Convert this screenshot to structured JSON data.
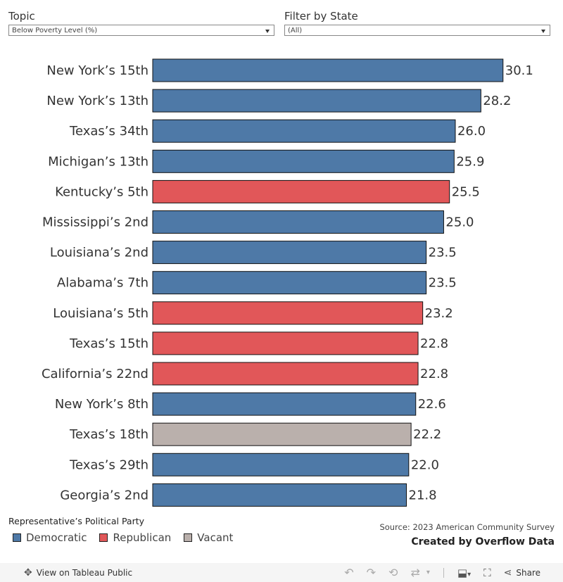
{
  "filters": {
    "topic": {
      "label": "Topic",
      "value": "Below Poverty Level (%)"
    },
    "state": {
      "label": "Filter by State",
      "value": "(All)"
    }
  },
  "colors": {
    "Democratic": "#4e79a7",
    "Republican": "#e15759",
    "Vacant": "#bab0ac",
    "bar_outline": "#111111"
  },
  "chart_data": {
    "type": "bar",
    "orientation": "horizontal",
    "title": "",
    "xlabel": "",
    "ylabel": "",
    "xlim": [
      0,
      33.5
    ],
    "grid": false,
    "legend_placement": "bottom-left",
    "categories": [
      "New York’s 15th",
      "New York’s 13th",
      "Texas’s 34th",
      "Michigan’s 13th",
      "Kentucky’s 5th",
      "Mississippi’s 2nd",
      "Louisiana’s 2nd",
      "Alabama’s 7th",
      "Louisiana’s 5th",
      "Texas’s 15th",
      "California’s 22nd",
      "New York’s 8th",
      "Texas’s 18th",
      "Texas’s 29th",
      "Georgia’s 2nd"
    ],
    "values": [
      30.1,
      28.2,
      26.0,
      25.9,
      25.5,
      25.0,
      23.5,
      23.5,
      23.2,
      22.8,
      22.8,
      22.6,
      22.2,
      22.0,
      21.8
    ],
    "value_labels": [
      "30.1",
      "28.2",
      "26.0",
      "25.9",
      "25.5",
      "25.0",
      "23.5",
      "23.5",
      "23.2",
      "22.8",
      "22.8",
      "22.6",
      "22.2",
      "22.0",
      "21.8"
    ],
    "party": [
      "Democratic",
      "Democratic",
      "Democratic",
      "Democratic",
      "Republican",
      "Democratic",
      "Democratic",
      "Democratic",
      "Republican",
      "Republican",
      "Republican",
      "Democratic",
      "Vacant",
      "Democratic",
      "Democratic"
    ]
  },
  "legend": {
    "title": "Representative’s Political Party",
    "items": [
      {
        "label": "Democratic",
        "color": "#4e79a7"
      },
      {
        "label": "Republican",
        "color": "#e15759"
      },
      {
        "label": "Vacant",
        "color": "#bab0ac"
      }
    ]
  },
  "footer": {
    "source": "Source: 2023 American Community Survey",
    "credit": "Created by Overflow Data"
  },
  "toolbar": {
    "view_label": "View on Tableau Public",
    "share_label": "Share",
    "icons": [
      "undo-icon",
      "redo-icon",
      "revert-icon",
      "refresh-icon",
      "download-icon",
      "fullscreen-icon",
      "share-icon"
    ]
  }
}
